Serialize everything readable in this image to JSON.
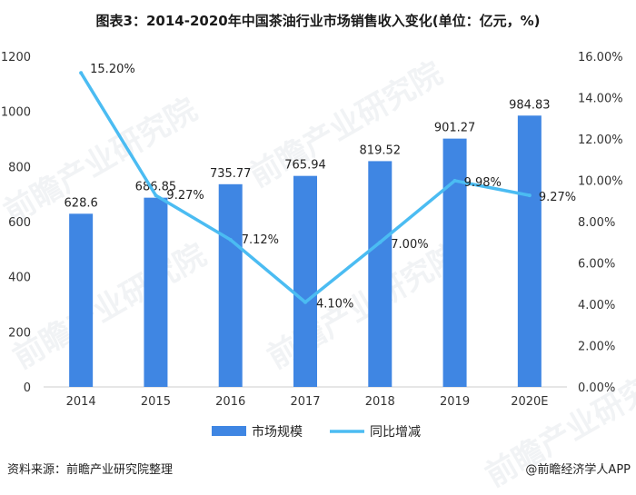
{
  "title": "图表3：2014-2020年中国茶油行业市场销售收入变化(单位：亿元，%)",
  "footer": {
    "source": "资料来源：前瞻产业研究院整理",
    "brand": "@前瞻经济学人APP"
  },
  "watermark_text": "前瞻产业研究院",
  "colors": {
    "bar": "#3f86e3",
    "line": "#4bbcf2",
    "axis": "#cccccc"
  },
  "chart_data": {
    "type": "bar+line",
    "categories": [
      "2014",
      "2015",
      "2016",
      "2017",
      "2018",
      "2019",
      "2020E"
    ],
    "series": [
      {
        "name": "市场规模",
        "type": "bar",
        "axis": "left",
        "values": [
          628.6,
          686.85,
          735.77,
          765.94,
          819.52,
          901.27,
          984.83
        ],
        "labels": [
          "628.6",
          "686.85",
          "735.77",
          "765.94",
          "819.52",
          "901.27",
          "984.83"
        ]
      },
      {
        "name": "同比增减",
        "type": "line",
        "axis": "right",
        "values": [
          15.2,
          9.27,
          7.12,
          4.1,
          7.0,
          9.98,
          9.27
        ],
        "labels": [
          "15.20%",
          "9.27%",
          "7.12%",
          "4.10%",
          "7.00%",
          "9.98%",
          "9.27%"
        ]
      }
    ],
    "y_left": {
      "min": 0,
      "max": 1200,
      "ticks": [
        "0",
        "200",
        "400",
        "600",
        "800",
        "1000",
        "1200"
      ]
    },
    "y_right": {
      "min": 0,
      "max": 16,
      "ticks": [
        "0.00%",
        "2.00%",
        "4.00%",
        "6.00%",
        "8.00%",
        "10.00%",
        "12.00%",
        "14.00%",
        "16.00%"
      ]
    },
    "legend_position": "bottom",
    "grid": false
  }
}
